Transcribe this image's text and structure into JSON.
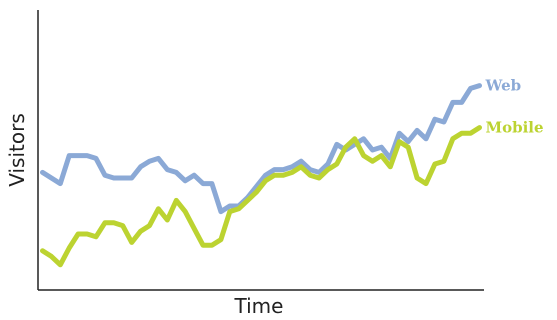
{
  "chart_data": {
    "type": "line",
    "title": "",
    "xlabel": "Time",
    "ylabel": "Visitors",
    "x": [
      0,
      1,
      2,
      3,
      4,
      5,
      6,
      7,
      8,
      9,
      10,
      11,
      12,
      13,
      14,
      15,
      16,
      17,
      18,
      19,
      20,
      21,
      22,
      23,
      24,
      25,
      26,
      27,
      28,
      29,
      30,
      31,
      32,
      33,
      34,
      35,
      36,
      37,
      38,
      39,
      40,
      41,
      42,
      43,
      44,
      45,
      46,
      47,
      48,
      49
    ],
    "xlim": [
      -0.5,
      49.5
    ],
    "ylim": [
      0,
      100
    ],
    "grid": false,
    "legend": "direct labels at line ends (right)",
    "series": [
      {
        "name": "Web",
        "color": "#8ba9d6",
        "values": [
          42,
          40,
          38,
          48,
          48,
          48,
          47,
          41,
          40,
          40,
          40,
          44,
          46,
          47,
          43,
          42,
          39,
          41,
          38,
          38,
          28,
          30,
          30,
          33,
          37,
          41,
          43,
          43,
          44,
          46,
          43,
          42,
          45,
          52,
          50,
          52,
          54,
          50,
          51,
          47,
          56,
          53,
          57,
          54,
          61,
          60,
          67,
          67,
          72,
          73
        ]
      },
      {
        "name": "Mobile",
        "color": "#bcd331",
        "values": [
          14,
          12,
          9,
          15,
          20,
          20,
          19,
          24,
          24,
          23,
          17,
          21,
          23,
          29,
          25,
          32,
          28,
          22,
          16,
          16,
          18,
          28,
          29,
          32,
          35,
          39,
          41,
          41,
          42,
          44,
          41,
          40,
          43,
          45,
          51,
          54,
          48,
          46,
          48,
          44,
          53,
          51,
          40,
          38,
          45,
          46,
          54,
          56,
          56,
          58
        ]
      }
    ]
  }
}
